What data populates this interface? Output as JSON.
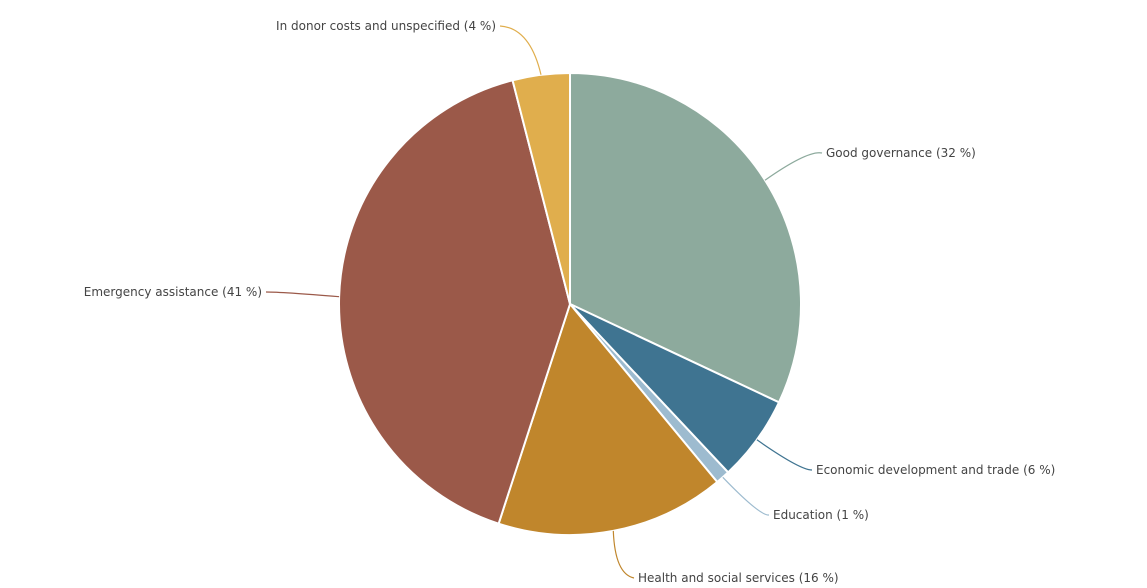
{
  "chart_data": {
    "type": "pie",
    "title": "",
    "start_angle_deg": 0,
    "direction": "clockwise",
    "slices": [
      {
        "label": "Good governance (32 %)",
        "value": 32,
        "color": "#8daa9d"
      },
      {
        "label": "Economic development and trade (6 %)",
        "value": 6,
        "color": "#3f7491"
      },
      {
        "label": "Education (1 %)",
        "value": 1,
        "color": "#9dbbcf"
      },
      {
        "label": "Health and social services (16 %)",
        "value": 16,
        "color": "#c0862c"
      },
      {
        "label": "Emergency assistance (41 %)",
        "value": 41,
        "color": "#9b5949"
      },
      {
        "label": "In donor costs and unspecified (4 %)",
        "value": 4,
        "color": "#e0ae4d"
      }
    ]
  }
}
